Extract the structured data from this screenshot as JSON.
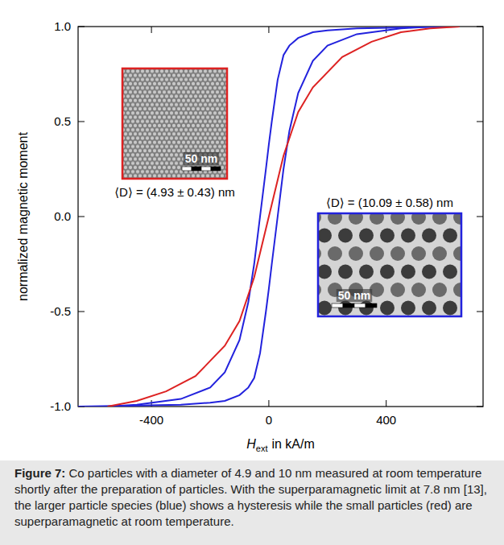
{
  "chart_data": {
    "type": "line",
    "y_label": "normalized magnetic moment",
    "x_label": {
      "symbol": "H",
      "subscript": "ext",
      "unit": "in kA/m"
    },
    "xlim": [
      -650,
      730
    ],
    "ylim": [
      -1.0,
      1.0
    ],
    "xticks": [
      -400,
      0,
      400
    ],
    "yticks": [
      {
        "value": -1.0,
        "label": "-1.0"
      },
      {
        "value": -0.5,
        "label": "-0.5"
      },
      {
        "value": 0,
        "label": "0.0"
      },
      {
        "value": 0.5,
        "label": "0.5"
      },
      {
        "value": 1.0,
        "label": "1.0"
      }
    ],
    "grid": false,
    "series": [
      {
        "color": "#2222dd",
        "x": [
          650,
          450,
          300,
          200,
          150,
          100,
          70,
          50,
          30,
          10,
          0,
          -10,
          -30,
          -50,
          -70,
          -100,
          -150,
          -200,
          -300,
          -450,
          -550
        ],
        "values": [
          1.0,
          0.995,
          0.99,
          0.98,
          0.97,
          0.94,
          0.9,
          0.85,
          0.72,
          0.5,
          0.38,
          0.25,
          0,
          -0.25,
          -0.45,
          -0.65,
          -0.82,
          -0.9,
          -0.96,
          -0.99,
          -1.0
        ]
      },
      {
        "color": "#2222dd",
        "x": [
          -650,
          -450,
          -300,
          -200,
          -150,
          -100,
          -70,
          -50,
          -30,
          -10,
          0,
          10,
          30,
          50,
          70,
          100,
          150,
          200,
          300,
          450,
          550
        ],
        "values": [
          -1.0,
          -0.995,
          -0.99,
          -0.98,
          -0.97,
          -0.94,
          -0.9,
          -0.85,
          -0.72,
          -0.5,
          -0.38,
          -0.25,
          0,
          0.25,
          0.45,
          0.65,
          0.82,
          0.9,
          0.96,
          0.99,
          1.0
        ]
      },
      {
        "color": "#dd2222",
        "x": [
          -550,
          -450,
          -350,
          -250,
          -150,
          -100,
          -50,
          0,
          50,
          100,
          150,
          250,
          350,
          450,
          550,
          650
        ],
        "values": [
          -1.0,
          -0.97,
          -0.92,
          -0.84,
          -0.68,
          -0.55,
          -0.32,
          0,
          0.32,
          0.55,
          0.68,
          0.84,
          0.92,
          0.97,
          0.99,
          1.0
        ]
      }
    ],
    "insets": [
      {
        "label": "⟨D⟩ = (4.93 ± 0.43) nm",
        "scale_bar": "50 nm",
        "color": "#dd2222"
      },
      {
        "label": "⟨D⟩ = (10.09 ± 0.58) nm",
        "scale_bar": "50 nm",
        "color": "#2222dd"
      }
    ]
  },
  "caption": {
    "label": "Figure 7:",
    "text": "Co particles with a diameter of 4.9 and 10 nm measured at room temperature shortly after the preparation of particles. With the superparamagnetic limit at 7.8 nm [13], the larger particle species (blue) shows a hysteresis while the small particles (red) are superparamagnetic at room temperature."
  }
}
